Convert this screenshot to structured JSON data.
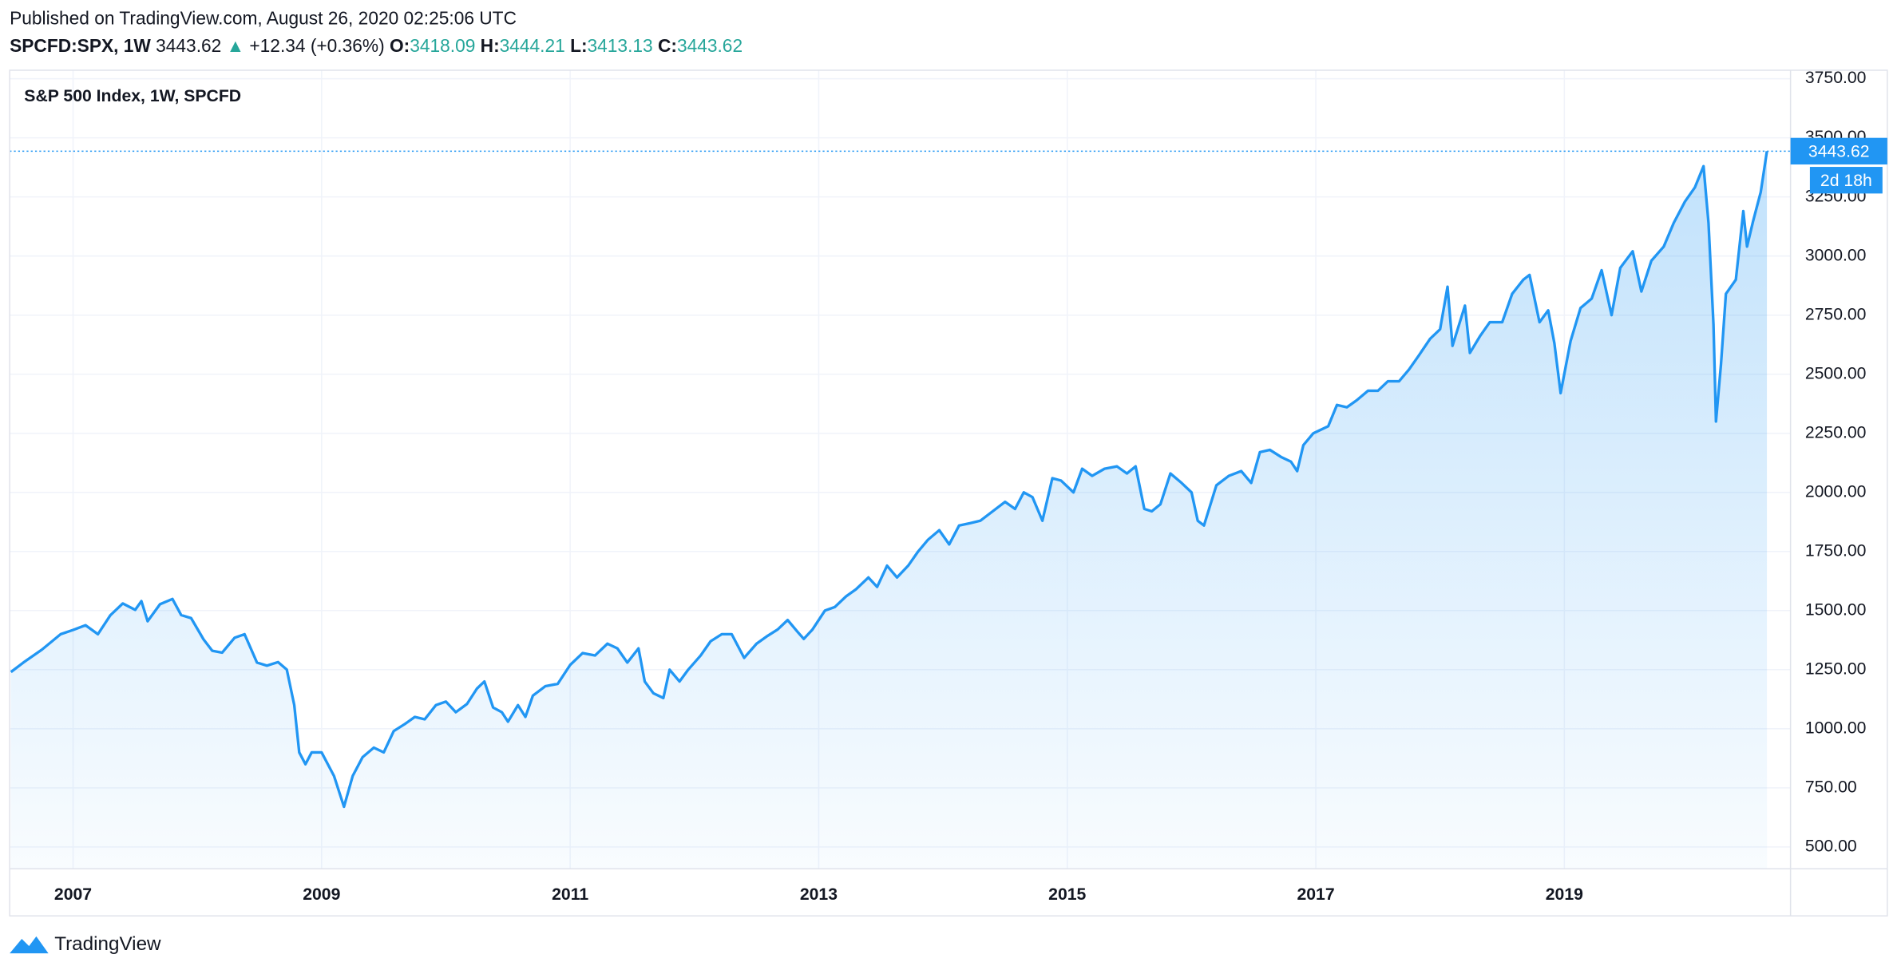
{
  "chart_data": {
    "type": "area",
    "published": "Published on TradingView.com, August 26, 2020 02:25:06 UTC",
    "symbol": "SPCFD:SPX, 1W",
    "last": "3443.62",
    "change_arrow": "▲",
    "change": "+12.34 (+0.36%)",
    "ohlc": [
      {
        "label": "O:",
        "value": "3418.09"
      },
      {
        "label": "H:",
        "value": "3444.21"
      },
      {
        "label": "L:",
        "value": "3413.13"
      },
      {
        "label": "C:",
        "value": "3443.62"
      }
    ],
    "title": "S&P 500 Index, 1W, SPCFD",
    "price_tag": "3443.62",
    "countdown": "2d 18h",
    "brand": "TradingView",
    "color": "#2196f3",
    "xlim": [
      2006.49,
      2020.82
    ],
    "xticks": [
      2007,
      2009,
      2011,
      2013,
      2015,
      2017,
      2019
    ],
    "ylim": [
      408,
      3786
    ],
    "yticks": [
      {
        "value": 500,
        "label": "500.00"
      },
      {
        "value": 750,
        "label": "750.00"
      },
      {
        "value": 1000,
        "label": "1000.00"
      },
      {
        "value": 1250,
        "label": "1250.00"
      },
      {
        "value": 1500,
        "label": "1500.00"
      },
      {
        "value": 1750,
        "label": "1750.00"
      },
      {
        "value": 2000,
        "label": "2000.00"
      },
      {
        "value": 2250,
        "label": "2250.00"
      },
      {
        "value": 2500,
        "label": "2500.00"
      },
      {
        "value": 2750,
        "label": "2750.00"
      },
      {
        "value": 3000,
        "label": "3000.00"
      },
      {
        "value": 3250,
        "label": "3250.00"
      },
      {
        "value": 3500,
        "label": "3500.00"
      },
      {
        "value": 3750,
        "label": "3750.00"
      }
    ],
    "grid": true,
    "x": [
      2006.5,
      2006.6,
      2006.75,
      2006.9,
      2007.0,
      2007.1,
      2007.2,
      2007.3,
      2007.4,
      2007.5,
      2007.55,
      2007.6,
      2007.7,
      2007.8,
      2007.87,
      2007.95,
      2008.05,
      2008.12,
      2008.2,
      2008.3,
      2008.38,
      2008.48,
      2008.56,
      2008.65,
      2008.72,
      2008.78,
      2008.82,
      2008.87,
      2008.92,
      2009.0,
      2009.1,
      2009.18,
      2009.25,
      2009.33,
      2009.42,
      2009.5,
      2009.58,
      2009.67,
      2009.75,
      2009.83,
      2009.92,
      2010.0,
      2010.08,
      2010.17,
      2010.25,
      2010.31,
      2010.38,
      2010.45,
      2010.5,
      2010.58,
      2010.64,
      2010.7,
      2010.8,
      2010.9,
      2011.0,
      2011.1,
      2011.2,
      2011.3,
      2011.38,
      2011.46,
      2011.55,
      2011.6,
      2011.67,
      2011.75,
      2011.8,
      2011.88,
      2011.95,
      2012.05,
      2012.13,
      2012.22,
      2012.3,
      2012.4,
      2012.5,
      2012.58,
      2012.67,
      2012.75,
      2012.83,
      2012.88,
      2012.95,
      2013.05,
      2013.13,
      2013.22,
      2013.3,
      2013.4,
      2013.47,
      2013.55,
      2013.63,
      2013.72,
      2013.8,
      2013.88,
      2013.97,
      2014.05,
      2014.13,
      2014.22,
      2014.3,
      2014.4,
      2014.5,
      2014.58,
      2014.65,
      2014.72,
      2014.8,
      2014.88,
      2014.95,
      2015.05,
      2015.12,
      2015.2,
      2015.3,
      2015.4,
      2015.48,
      2015.55,
      2015.62,
      2015.68,
      2015.75,
      2015.83,
      2015.92,
      2016.0,
      2016.05,
      2016.1,
      2016.2,
      2016.3,
      2016.4,
      2016.48,
      2016.55,
      2016.63,
      2016.72,
      2016.8,
      2016.85,
      2016.9,
      2016.98,
      2017.1,
      2017.17,
      2017.25,
      2017.33,
      2017.42,
      2017.5,
      2017.58,
      2017.67,
      2017.75,
      2017.83,
      2017.92,
      2018.0,
      2018.06,
      2018.1,
      2018.2,
      2018.24,
      2018.32,
      2018.4,
      2018.5,
      2018.58,
      2018.67,
      2018.72,
      2018.8,
      2018.87,
      2018.92,
      2018.97,
      2019.05,
      2019.13,
      2019.22,
      2019.3,
      2019.38,
      2019.45,
      2019.55,
      2019.62,
      2019.7,
      2019.8,
      2019.88,
      2019.97,
      2020.05,
      2020.12,
      2020.16,
      2020.2,
      2020.22,
      2020.26,
      2020.3,
      2020.38,
      2020.44,
      2020.47,
      2020.52,
      2020.58,
      2020.63
    ],
    "values": [
      1240,
      1280,
      1335,
      1400,
      1418,
      1438,
      1400,
      1480,
      1530,
      1503,
      1540,
      1455,
      1527,
      1549,
      1481,
      1468,
      1378,
      1330,
      1322,
      1385,
      1400,
      1280,
      1267,
      1282,
      1250,
      1100,
      900,
      850,
      900,
      900,
      800,
      670,
      800,
      880,
      920,
      900,
      990,
      1020,
      1050,
      1040,
      1100,
      1115,
      1070,
      1105,
      1170,
      1200,
      1090,
      1070,
      1030,
      1100,
      1050,
      1140,
      1180,
      1190,
      1270,
      1320,
      1310,
      1360,
      1340,
      1280,
      1340,
      1200,
      1150,
      1130,
      1250,
      1200,
      1250,
      1310,
      1370,
      1400,
      1400,
      1300,
      1360,
      1390,
      1420,
      1460,
      1410,
      1380,
      1420,
      1500,
      1515,
      1560,
      1590,
      1640,
      1600,
      1690,
      1640,
      1690,
      1750,
      1800,
      1840,
      1780,
      1860,
      1870,
      1880,
      1920,
      1960,
      1930,
      2000,
      1980,
      1880,
      2060,
      2050,
      2000,
      2100,
      2070,
      2100,
      2110,
      2080,
      2110,
      1930,
      1920,
      1950,
      2080,
      2040,
      2000,
      1880,
      1860,
      2030,
      2070,
      2090,
      2040,
      2170,
      2180,
      2150,
      2130,
      2090,
      2200,
      2250,
      2280,
      2370,
      2360,
      2390,
      2430,
      2430,
      2470,
      2470,
      2520,
      2580,
      2650,
      2690,
      2870,
      2620,
      2790,
      2590,
      2660,
      2720,
      2720,
      2840,
      2900,
      2920,
      2720,
      2770,
      2630,
      2420,
      2640,
      2780,
      2820,
      2940,
      2750,
      2950,
      3020,
      2850,
      2980,
      3040,
      3140,
      3230,
      3290,
      3380,
      3140,
      2710,
      2300,
      2540,
      2840,
      2900,
      3190,
      3040,
      3150,
      3270,
      3443.62
    ]
  }
}
